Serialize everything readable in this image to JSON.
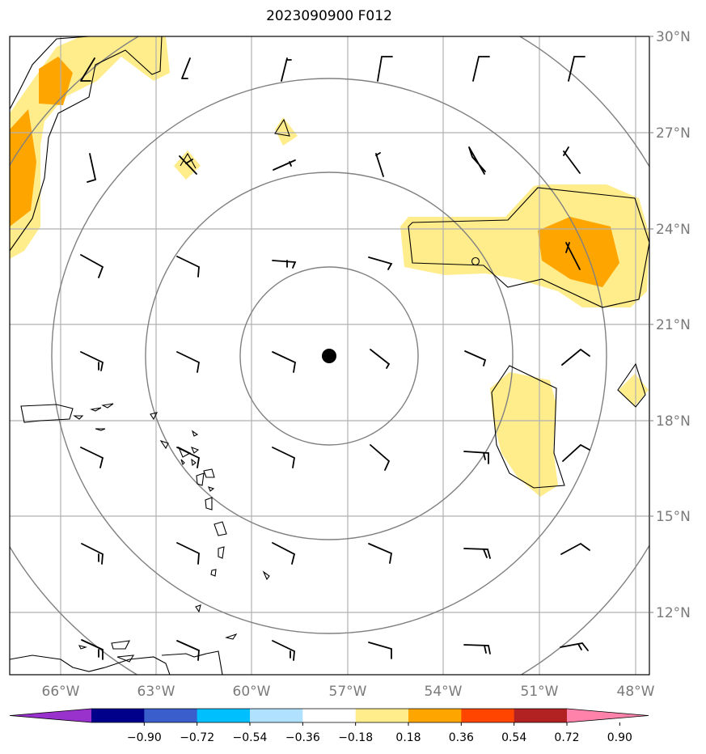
{
  "title": "2023090900 F012",
  "map": {
    "lat_labels": [
      "30°N",
      "27°N",
      "24°N",
      "21°N",
      "18°N",
      "15°N",
      "12°N"
    ],
    "lon_labels": [
      "66°W",
      "63°W",
      "60°W",
      "57°W",
      "54°W",
      "51°W",
      "48°W"
    ],
    "center_marker": "storm-center"
  },
  "colorbar": {
    "labels": [
      "−0.90",
      "−0.72",
      "−0.54",
      "−0.36",
      "−0.18",
      "0.18",
      "0.36",
      "0.54",
      "0.72",
      "0.90"
    ],
    "colors": [
      "#9932cc",
      "#00008b",
      "#3a5fcd",
      "#00bfff",
      "#b0e2ff",
      "#ffffff",
      "#ffec8b",
      "#ffa500",
      "#ff4500",
      "#b22222",
      "#ff82ab"
    ]
  },
  "fill_colors": {
    "light": "#ffec8b",
    "orange": "#ffa500"
  }
}
